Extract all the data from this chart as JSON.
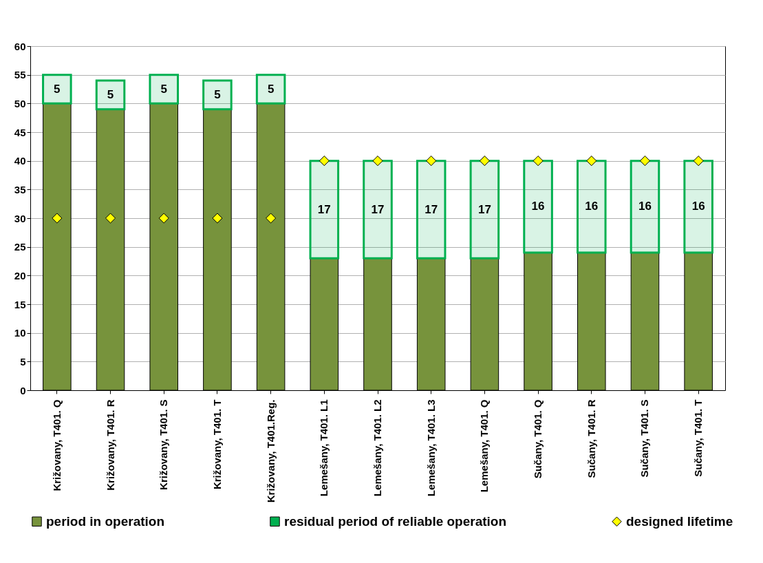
{
  "chart_data": {
    "type": "bar",
    "stacked": true,
    "categories": [
      "Križovany, T401. Q",
      "Križovany, T401. R",
      "Križovany, T401. S",
      "Križovany, T401. T",
      "Križovany, T401.Reg.",
      "Lemešany, T401. L1",
      "Lemešany, T401. L2",
      "Lemešany, T401. L3",
      "Lemešany, T401. Q",
      "Sučany, T401. Q",
      "Sučany, T401. R",
      "Sučany, T401. S",
      "Sučany, T401. T"
    ],
    "series": [
      {
        "name": "period in operation",
        "color": "#77933c",
        "values": [
          50,
          49,
          50,
          49,
          50,
          23,
          23,
          23,
          23,
          24,
          24,
          24,
          24
        ]
      },
      {
        "name": "residual period of reliable operation",
        "color": "#00b050",
        "values": [
          5,
          5,
          5,
          5,
          5,
          17,
          17,
          17,
          17,
          16,
          16,
          16,
          16
        ],
        "value_labels": [
          "5",
          "5",
          "5",
          "5",
          "5",
          "17",
          "17",
          "17",
          "17",
          "16",
          "16",
          "16",
          "16"
        ]
      },
      {
        "name": "designed lifetime",
        "type": "scatter",
        "marker": "diamond",
        "color": "#ffff00",
        "values": [
          30,
          30,
          30,
          30,
          30,
          40,
          40,
          40,
          40,
          40,
          40,
          40,
          40
        ]
      }
    ],
    "ylim": [
      0,
      60
    ],
    "yticks": [
      0,
      5,
      10,
      15,
      20,
      25,
      30,
      35,
      40,
      45,
      50,
      55,
      60
    ],
    "grid": "y",
    "legend": "bottom"
  }
}
